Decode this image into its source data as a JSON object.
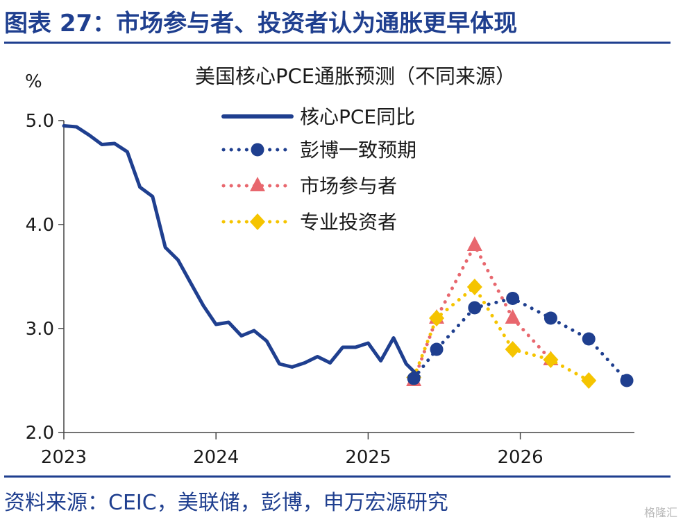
{
  "header": {
    "figure_title": "图表 27：市场参与者、投资者认为通胀更早体现"
  },
  "footer": {
    "source": "资料来源：CEIC，美联储，彭博，申万宏源研究",
    "watermark": "格隆汇"
  },
  "chart_data": {
    "type": "line",
    "title": "美国核心PCE通胀预测（不同来源）",
    "ylabel": "%",
    "ylim": [
      2.0,
      5.0
    ],
    "yticks": [
      "5.0",
      "4.0",
      "3.0",
      "2.0"
    ],
    "ytick_values": [
      5.0,
      4.0,
      3.0,
      2.0
    ],
    "xlim": [
      2023.0,
      2026.75
    ],
    "xticks": [
      "2023",
      "2024",
      "2025",
      "2026"
    ],
    "xtick_values": [
      2023,
      2024,
      2025,
      2026
    ],
    "grid": false,
    "legend_placement": "top-center",
    "series": [
      {
        "name": "核心PCE同比",
        "style": "solid",
        "marker": "none",
        "color": "#1f3f8f",
        "x": [
          2023.0,
          2023.083,
          2023.167,
          2023.25,
          2023.333,
          2023.417,
          2023.5,
          2023.583,
          2023.667,
          2023.75,
          2023.833,
          2023.917,
          2024.0,
          2024.083,
          2024.167,
          2024.25,
          2024.333,
          2024.417,
          2024.5,
          2024.583,
          2024.667,
          2024.75,
          2024.833,
          2024.917,
          2025.0,
          2025.083,
          2025.167,
          2025.25,
          2025.333
        ],
        "y": [
          4.95,
          4.94,
          4.86,
          4.77,
          4.78,
          4.7,
          4.36,
          4.27,
          3.78,
          3.66,
          3.44,
          3.22,
          3.04,
          3.06,
          2.93,
          2.98,
          2.88,
          2.66,
          2.63,
          2.67,
          2.73,
          2.67,
          2.82,
          2.82,
          2.86,
          2.69,
          2.91,
          2.66,
          2.54
        ]
      },
      {
        "name": "彭博一致预期",
        "style": "dotted",
        "marker": "circle",
        "color": "#1f3f8f",
        "x": [
          2025.3,
          2025.45,
          2025.7,
          2025.95,
          2026.2,
          2026.45,
          2026.7
        ],
        "y": [
          2.52,
          2.8,
          3.2,
          3.29,
          3.1,
          2.9,
          2.5
        ]
      },
      {
        "name": "市场参与者",
        "style": "dotted",
        "marker": "triangle",
        "color": "#e8676e",
        "x": [
          2025.3,
          2025.45,
          2025.7,
          2025.95,
          2026.2
        ],
        "y": [
          2.5,
          3.1,
          3.8,
          3.1,
          2.7
        ]
      },
      {
        "name": "专业投资者",
        "style": "dotted",
        "marker": "diamond",
        "color": "#f5c400",
        "x": [
          2025.3,
          2025.45,
          2025.7,
          2025.95,
          2026.2,
          2026.45
        ],
        "y": [
          2.53,
          3.1,
          3.4,
          2.8,
          2.7,
          2.5
        ]
      }
    ]
  }
}
